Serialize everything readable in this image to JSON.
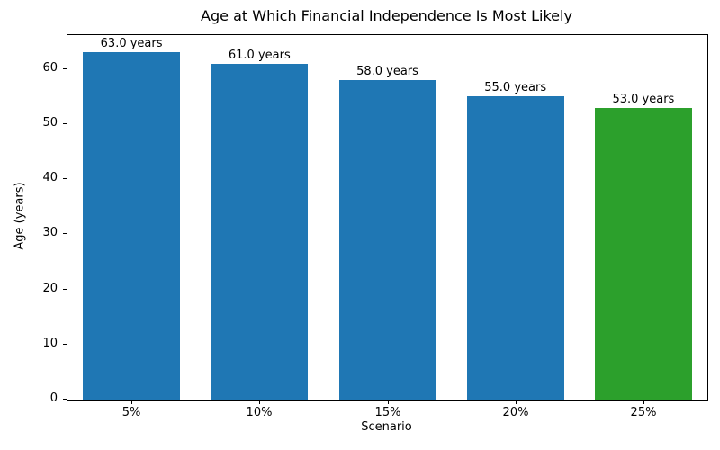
{
  "chart_data": {
    "type": "bar",
    "title": "Age at Which Financial Independence Is Most Likely",
    "xlabel": "Scenario",
    "ylabel": "Age (years)",
    "categories": [
      "5%",
      "10%",
      "15%",
      "20%",
      "25%"
    ],
    "values": [
      63.0,
      61.0,
      58.0,
      55.0,
      53.0
    ],
    "bar_labels": [
      "63.0 years",
      "61.0 years",
      "58.0 years",
      "55.0 years",
      "53.0 years"
    ],
    "bar_colors": [
      "#1f77b4",
      "#1f77b4",
      "#1f77b4",
      "#1f77b4",
      "#2ca02c"
    ],
    "ylim": [
      0,
      66.15
    ],
    "yticks": [
      0,
      10,
      20,
      30,
      40,
      50,
      60
    ],
    "grid": false,
    "legend_position": "none",
    "colors": {
      "bar_blue": "#1f77b4",
      "bar_green": "#2ca02c",
      "spine": "#000000",
      "text": "#000000",
      "background": "#ffffff"
    }
  }
}
